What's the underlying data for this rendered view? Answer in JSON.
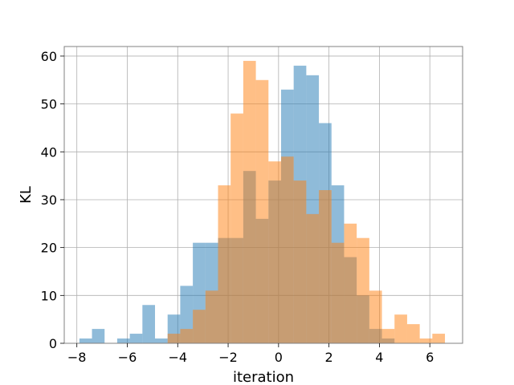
{
  "chart_data": {
    "type": "histogram",
    "title": "",
    "xlabel": "iteration",
    "ylabel": "KL",
    "xlim": [
      -8.5,
      7.3
    ],
    "ylim": [
      0,
      62
    ],
    "xticks": [
      -8,
      -6,
      -4,
      -2,
      0,
      2,
      4,
      6
    ],
    "yticks": [
      0,
      10,
      20,
      30,
      40,
      50,
      60
    ],
    "grid": true,
    "legend": "none",
    "bin_width": 0.5,
    "series": [
      {
        "color": "#1f77b4",
        "alpha": 0.5,
        "bin_starts": [
          -7.9,
          -7.4,
          -6.9,
          -6.4,
          -5.9,
          -5.4,
          -4.9,
          -4.4,
          -3.9,
          -3.4,
          -2.9,
          -2.4,
          -1.9,
          -1.4,
          -0.9,
          -0.4,
          0.1,
          0.6,
          1.1,
          1.6,
          2.1,
          2.6,
          3.1,
          3.6,
          4.1
        ],
        "counts": [
          1,
          3,
          0,
          1,
          2,
          8,
          1,
          6,
          12,
          21,
          21,
          22,
          22,
          36,
          26,
          34,
          53,
          58,
          56,
          46,
          33,
          18,
          10,
          3,
          1
        ]
      },
      {
        "color": "#ff7f0e",
        "alpha": 0.5,
        "bin_starts": [
          -4.4,
          -3.9,
          -3.4,
          -2.9,
          -2.4,
          -1.9,
          -1.4,
          -0.9,
          -0.4,
          0.1,
          0.6,
          1.1,
          1.6,
          2.1,
          2.6,
          3.1,
          3.6,
          4.1,
          4.6,
          5.1,
          5.6,
          6.1
        ],
        "counts": [
          2,
          3,
          7,
          11,
          33,
          48,
          59,
          55,
          38,
          39,
          34,
          27,
          32,
          21,
          25,
          22,
          11,
          3,
          6,
          4,
          1,
          2
        ]
      }
    ]
  }
}
